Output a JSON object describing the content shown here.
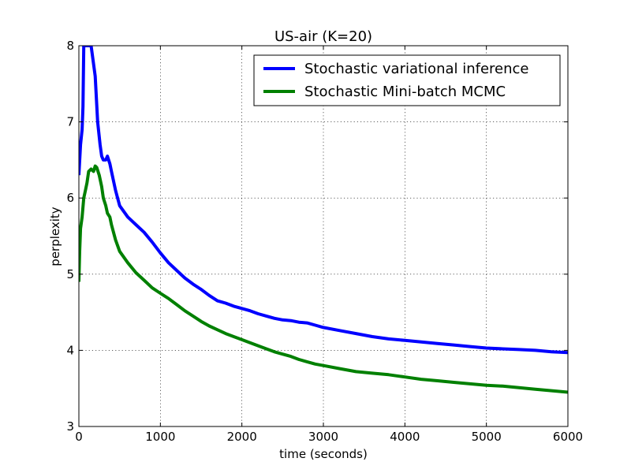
{
  "chart_data": {
    "type": "line",
    "title": "US-air (K=20)",
    "xlabel": "time (seconds)",
    "ylabel": "perplexity",
    "xlim": [
      0,
      6000
    ],
    "ylim": [
      3,
      8
    ],
    "xticks": [
      0,
      1000,
      2000,
      3000,
      4000,
      5000,
      6000
    ],
    "yticks": [
      3,
      4,
      5,
      6,
      7,
      8
    ],
    "grid": true,
    "legend_position": "top-right",
    "series": [
      {
        "name": "Stochastic variational inference",
        "color": "#0000ff",
        "x": [
          0,
          20,
          40,
          50,
          60,
          70,
          80,
          100,
          150,
          200,
          230,
          260,
          280,
          300,
          330,
          350,
          380,
          400,
          450,
          500,
          600,
          700,
          800,
          900,
          1000,
          1100,
          1200,
          1300,
          1400,
          1500,
          1600,
          1700,
          1800,
          1900,
          2000,
          2100,
          2200,
          2300,
          2400,
          2500,
          2600,
          2700,
          2800,
          2900,
          3000,
          3200,
          3400,
          3600,
          3800,
          4000,
          4200,
          4400,
          4600,
          4800,
          5000,
          5200,
          5400,
          5600,
          5800,
          6000
        ],
        "values": [
          6.3,
          6.7,
          6.9,
          7.2,
          8.0,
          8.0,
          8.0,
          8.0,
          8.0,
          7.6,
          7.0,
          6.7,
          6.55,
          6.5,
          6.5,
          6.55,
          6.45,
          6.35,
          6.1,
          5.9,
          5.75,
          5.65,
          5.55,
          5.42,
          5.28,
          5.15,
          5.05,
          4.95,
          4.87,
          4.8,
          4.72,
          4.65,
          4.62,
          4.58,
          4.55,
          4.52,
          4.48,
          4.45,
          4.42,
          4.4,
          4.39,
          4.37,
          4.36,
          4.33,
          4.3,
          4.26,
          4.22,
          4.18,
          4.15,
          4.13,
          4.11,
          4.09,
          4.07,
          4.05,
          4.03,
          4.02,
          4.01,
          4.0,
          3.98,
          3.97
        ]
      },
      {
        "name": "Stochastic Mini-batch MCMC",
        "color": "#008000",
        "x": [
          0,
          10,
          20,
          40,
          60,
          80,
          100,
          120,
          150,
          180,
          200,
          220,
          250,
          280,
          300,
          330,
          350,
          380,
          400,
          450,
          500,
          600,
          700,
          800,
          900,
          1000,
          1100,
          1200,
          1300,
          1400,
          1500,
          1600,
          1700,
          1800,
          1900,
          2000,
          2100,
          2200,
          2300,
          2400,
          2500,
          2600,
          2700,
          2800,
          2900,
          3000,
          3200,
          3400,
          3600,
          3800,
          4000,
          4200,
          4400,
          4600,
          4800,
          5000,
          5200,
          5400,
          5600,
          5800,
          6000
        ],
        "values": [
          4.9,
          5.3,
          5.6,
          5.75,
          6.0,
          6.1,
          6.2,
          6.35,
          6.38,
          6.35,
          6.42,
          6.4,
          6.3,
          6.15,
          6.0,
          5.9,
          5.8,
          5.75,
          5.65,
          5.45,
          5.3,
          5.15,
          5.02,
          4.92,
          4.82,
          4.75,
          4.68,
          4.6,
          4.52,
          4.45,
          4.38,
          4.32,
          4.27,
          4.22,
          4.18,
          4.14,
          4.1,
          4.06,
          4.02,
          3.98,
          3.95,
          3.92,
          3.88,
          3.85,
          3.82,
          3.8,
          3.76,
          3.72,
          3.7,
          3.68,
          3.65,
          3.62,
          3.6,
          3.58,
          3.56,
          3.54,
          3.53,
          3.51,
          3.49,
          3.47,
          3.45
        ]
      }
    ]
  }
}
